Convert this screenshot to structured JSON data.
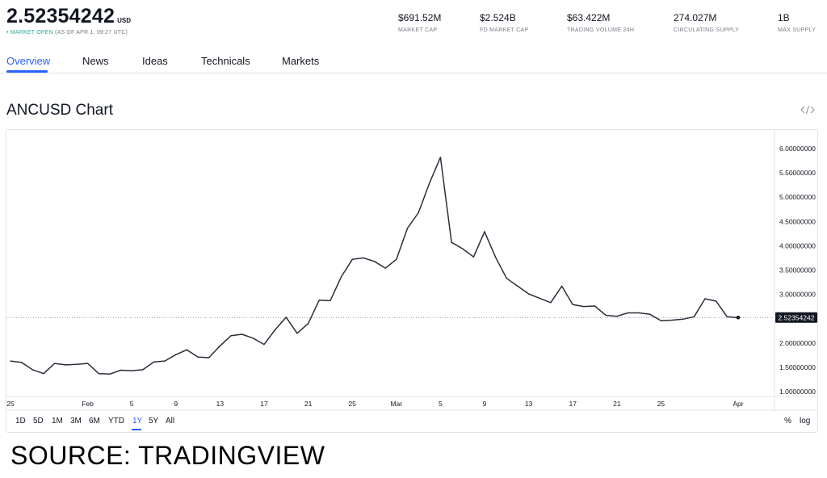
{
  "header": {
    "price": "2.52354242",
    "currency": "USD",
    "status_dot": "•",
    "status": "MARKET OPEN",
    "as_of": "(AS OF APR 1, 09:27 UTC)",
    "stats": [
      {
        "value": "$691.52M",
        "label": "MARKET CAP"
      },
      {
        "value": "$2.524B",
        "label": "FD MARKET CAP"
      },
      {
        "value": "$63.422M",
        "label": "TRADING VOLUME 24H"
      },
      {
        "value": "274.027M",
        "label": "CIRCULATING SUPPLY"
      },
      {
        "value": "1B",
        "label": "MAX SUPPLY"
      }
    ]
  },
  "tabs": [
    "Overview",
    "News",
    "Ideas",
    "Technicals",
    "Markets"
  ],
  "active_tab": "Overview",
  "chart_title": "ANCUSD Chart",
  "embed_icon": "code-embed-icon",
  "ranges": [
    "1D",
    "5D",
    "1M",
    "3M",
    "6M",
    "YTD",
    "1Y",
    "5Y",
    "All"
  ],
  "active_range": "1Y",
  "scale_options": [
    "%",
    "log"
  ],
  "source": "SOURCE: TRADINGVIEW",
  "colors": {
    "accent": "#2962ff",
    "line": "#2a2e39",
    "market_open": "#26a69a",
    "price_label_bg": "#131722"
  },
  "chart_data": {
    "type": "line",
    "title": "ANCUSD Chart",
    "xlabel": "",
    "ylabel": "",
    "ylim": [
      1.0,
      6.0
    ],
    "y_ticks": [
      "6.00000000",
      "5.50000000",
      "5.00000000",
      "4.50000000",
      "4.00000000",
      "3.50000000",
      "3.00000000",
      "2.50000000",
      "2.00000000",
      "1.50000000",
      "1.00000000"
    ],
    "y_tick_values": [
      6.0,
      5.5,
      5.0,
      4.5,
      4.0,
      3.5,
      3.0,
      2.5,
      2.0,
      1.5,
      1.0
    ],
    "x_tick_labels": [
      {
        "label": "25",
        "date": "2022-01-25"
      },
      {
        "label": "Feb",
        "date": "2022-02-01"
      },
      {
        "label": "5",
        "date": "2022-02-05"
      },
      {
        "label": "9",
        "date": "2022-02-09"
      },
      {
        "label": "13",
        "date": "2022-02-13"
      },
      {
        "label": "17",
        "date": "2022-02-17"
      },
      {
        "label": "21",
        "date": "2022-02-21"
      },
      {
        "label": "25",
        "date": "2022-02-25"
      },
      {
        "label": "Mar",
        "date": "2022-03-01"
      },
      {
        "label": "5",
        "date": "2022-03-05"
      },
      {
        "label": "9",
        "date": "2022-03-09"
      },
      {
        "label": "13",
        "date": "2022-03-13"
      },
      {
        "label": "17",
        "date": "2022-03-17"
      },
      {
        "label": "21",
        "date": "2022-03-21"
      },
      {
        "label": "25",
        "date": "2022-03-25"
      },
      {
        "label": "Apr",
        "date": "2022-04-01"
      }
    ],
    "last_price_label": "2.52354242",
    "last_value": 2.52354242,
    "grid": false,
    "legend": "none",
    "series": [
      {
        "x": [
          "2022-01-25",
          "2022-01-26",
          "2022-01-27",
          "2022-01-28",
          "2022-01-29",
          "2022-01-30",
          "2022-01-31",
          "2022-02-01",
          "2022-02-02",
          "2022-02-03",
          "2022-02-04",
          "2022-02-05",
          "2022-02-06",
          "2022-02-07",
          "2022-02-08",
          "2022-02-09",
          "2022-02-10",
          "2022-02-11",
          "2022-02-12",
          "2022-02-13",
          "2022-02-14",
          "2022-02-15",
          "2022-02-16",
          "2022-02-17",
          "2022-02-18",
          "2022-02-19",
          "2022-02-20",
          "2022-02-21",
          "2022-02-22",
          "2022-02-23",
          "2022-02-24",
          "2022-02-25",
          "2022-02-26",
          "2022-02-27",
          "2022-02-28",
          "2022-03-01",
          "2022-03-02",
          "2022-03-03",
          "2022-03-04",
          "2022-03-05",
          "2022-03-06",
          "2022-03-07",
          "2022-03-08",
          "2022-03-09",
          "2022-03-10",
          "2022-03-11",
          "2022-03-12",
          "2022-03-13",
          "2022-03-14",
          "2022-03-15",
          "2022-03-16",
          "2022-03-17",
          "2022-03-18",
          "2022-03-19",
          "2022-03-20",
          "2022-03-21",
          "2022-03-22",
          "2022-03-23",
          "2022-03-24",
          "2022-03-25",
          "2022-03-26",
          "2022-03-27",
          "2022-03-28",
          "2022-03-29",
          "2022-03-30",
          "2022-03-31",
          "2022-04-01"
        ],
        "values": [
          1.63,
          1.6,
          1.45,
          1.37,
          1.58,
          1.55,
          1.56,
          1.58,
          1.37,
          1.36,
          1.44,
          1.43,
          1.45,
          1.61,
          1.63,
          1.76,
          1.86,
          1.71,
          1.7,
          1.94,
          2.15,
          2.18,
          2.1,
          1.97,
          2.27,
          2.53,
          2.2,
          2.4,
          2.88,
          2.87,
          3.36,
          3.72,
          3.75,
          3.68,
          3.54,
          3.72,
          4.36,
          4.68,
          5.29,
          5.82,
          4.07,
          3.94,
          3.77,
          4.29,
          3.76,
          3.33,
          3.17,
          3.01,
          2.92,
          2.83,
          3.17,
          2.79,
          2.75,
          2.76,
          2.57,
          2.55,
          2.62,
          2.62,
          2.59,
          2.46,
          2.47,
          2.49,
          2.54,
          2.91,
          2.86,
          2.54,
          2.52
        ]
      }
    ]
  }
}
